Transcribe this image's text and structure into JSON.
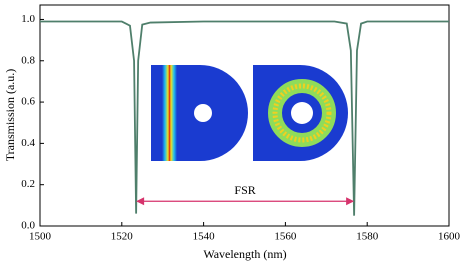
{
  "chart_data": {
    "type": "line",
    "x_label": "Wavelength (nm)",
    "y_label": "Transmission (a.u.)",
    "x": [
      1500,
      1510,
      1520,
      1522,
      1523,
      1523.5,
      1524,
      1525,
      1527,
      1540,
      1560,
      1572,
      1575,
      1576,
      1576.8,
      1577.5,
      1578.5,
      1580,
      1590,
      1600
    ],
    "values": [
      0.99,
      0.99,
      0.99,
      0.97,
      0.8,
      0.06,
      0.8,
      0.975,
      0.985,
      0.99,
      0.99,
      0.99,
      0.98,
      0.85,
      0.05,
      0.85,
      0.98,
      0.99,
      0.99,
      0.99
    ],
    "color": "#4f7f6b",
    "xlim": [
      1500,
      1600
    ],
    "xticks": [
      1500,
      1520,
      1540,
      1560,
      1580,
      1600
    ],
    "ylim": [
      0,
      1.07
    ],
    "yticks": [
      {
        "value": 0,
        "label": "0.0"
      },
      0.2,
      0.4,
      0.6,
      0.8,
      {
        "value": 1,
        "label": "1.0"
      }
    ],
    "annotation": {
      "text": "FSR",
      "x": [
        1523.5,
        1576.8
      ],
      "y": 0.12,
      "color": "#d6336c"
    }
  }
}
